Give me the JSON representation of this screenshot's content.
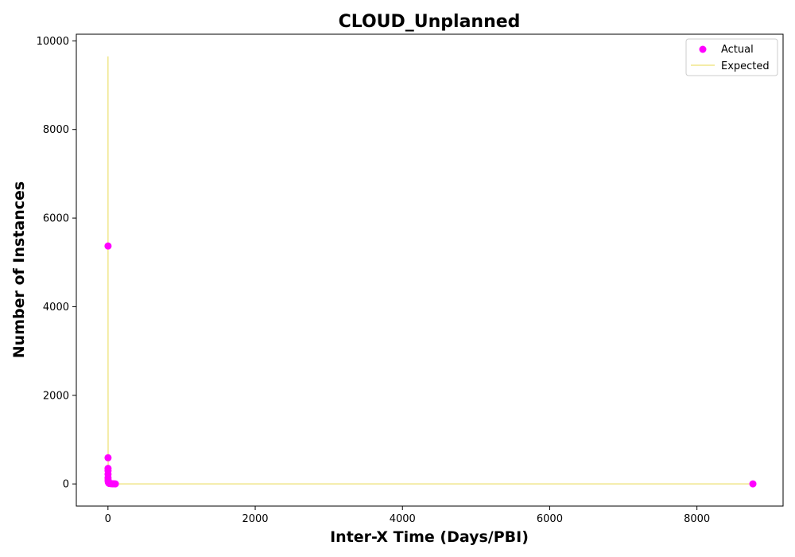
{
  "chart_data": {
    "type": "scatter",
    "title": "CLOUD_Unplanned",
    "xlabel": "Inter-X Time (Days/PBI)",
    "ylabel": "Number of Instances",
    "xlim": [
      -430,
      9170
    ],
    "ylim": [
      -500,
      10150
    ],
    "xticks": [
      0,
      2000,
      4000,
      6000,
      8000
    ],
    "yticks": [
      0,
      2000,
      4000,
      6000,
      8000,
      10000
    ],
    "grid": false,
    "legend_position": "top-right",
    "series": [
      {
        "name": "Actual",
        "kind": "scatter",
        "color": "#ff00ff",
        "points": [
          [
            1,
            5370
          ],
          [
            1,
            590
          ],
          [
            1,
            350
          ],
          [
            1,
            300
          ],
          [
            1,
            220
          ],
          [
            1,
            140
          ],
          [
            2,
            90
          ],
          [
            3,
            60
          ],
          [
            5,
            40
          ],
          [
            7,
            30
          ],
          [
            10,
            20
          ],
          [
            14,
            15
          ],
          [
            20,
            10
          ],
          [
            30,
            8
          ],
          [
            45,
            5
          ],
          [
            60,
            3
          ],
          [
            80,
            2
          ],
          [
            100,
            1
          ],
          [
            8760,
            1
          ]
        ]
      },
      {
        "name": "Expected",
        "kind": "line",
        "color": "#f0e68c",
        "points": [
          [
            0,
            9650
          ],
          [
            0.5,
            6000
          ],
          [
            1,
            2500
          ],
          [
            2,
            800
          ],
          [
            3,
            300
          ],
          [
            5,
            80
          ],
          [
            10,
            20
          ],
          [
            30,
            5
          ],
          [
            100,
            1
          ],
          [
            1000,
            0.1
          ],
          [
            8760,
            0
          ]
        ]
      }
    ]
  }
}
